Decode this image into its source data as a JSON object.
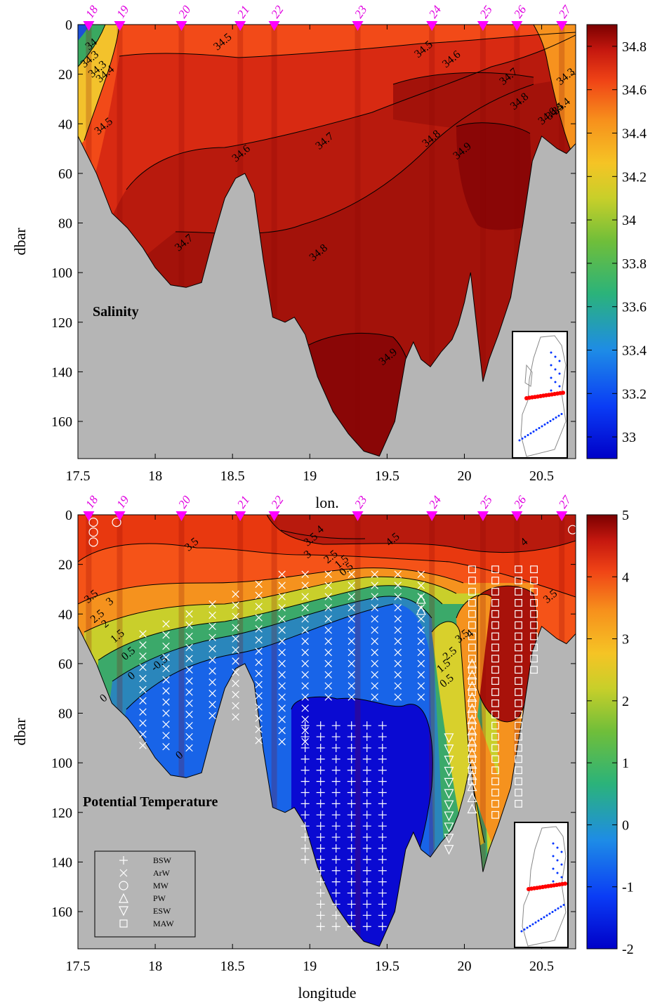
{
  "chart_data": [
    {
      "type": "heatmap",
      "title": "Salinity",
      "xlabel": "lon.",
      "ylabel": "dbar",
      "xlim": [
        17.5,
        20.72
      ],
      "ylim": [
        0,
        175
      ],
      "y_reversed": true,
      "xticks": [
        "17.5",
        "18",
        "18.5",
        "19",
        "19.5",
        "20",
        "20.5"
      ],
      "yticks": [
        "0",
        "20",
        "40",
        "60",
        "80",
        "100",
        "120",
        "140",
        "160"
      ],
      "stations": [
        {
          "id": "18",
          "lon": 17.57
        },
        {
          "id": "19",
          "lon": 17.77
        },
        {
          "id": "20",
          "lon": 18.17
        },
        {
          "id": "21",
          "lon": 18.55
        },
        {
          "id": "22",
          "lon": 18.77
        },
        {
          "id": "23",
          "lon": 19.31
        },
        {
          "id": "24",
          "lon": 19.79
        },
        {
          "id": "25",
          "lon": 20.12
        },
        {
          "id": "26",
          "lon": 20.34
        },
        {
          "id": "27",
          "lon": 20.63
        }
      ],
      "colorbar": {
        "range": [
          32.9,
          34.9
        ],
        "ticks": [
          "33",
          "33.2",
          "33.4",
          "33.6",
          "33.8",
          "34",
          "34.2",
          "34.4",
          "34.6",
          "34.8"
        ]
      },
      "contour_labels": [
        {
          "text": "34.5",
          "lon": 18.45,
          "dbar": 8
        },
        {
          "text": "34.5",
          "lon": 19.75,
          "dbar": 11
        },
        {
          "text": "34.6",
          "lon": 19.93,
          "dbar": 15
        },
        {
          "text": "34.5",
          "lon": 17.68,
          "dbar": 42
        },
        {
          "text": "34.6",
          "lon": 18.57,
          "dbar": 53
        },
        {
          "text": "34.7",
          "lon": 19.11,
          "dbar": 48
        },
        {
          "text": "34.8",
          "lon": 19.8,
          "dbar": 47
        },
        {
          "text": "34.9",
          "lon": 20.0,
          "dbar": 52
        },
        {
          "text": "34.7",
          "lon": 18.2,
          "dbar": 89
        },
        {
          "text": "34.8",
          "lon": 19.07,
          "dbar": 93
        },
        {
          "text": "34.9",
          "lon": 19.52,
          "dbar": 135
        },
        {
          "text": "34.7",
          "lon": 20.3,
          "dbar": 22
        },
        {
          "text": "34.8",
          "lon": 20.37,
          "dbar": 32
        },
        {
          "text": "34.3",
          "lon": 17.59,
          "dbar": 15
        },
        {
          "text": "34.3",
          "lon": 17.64,
          "dbar": 19
        },
        {
          "text": "34.4",
          "lon": 17.69,
          "dbar": 21
        },
        {
          "text": "34",
          "lon": 17.6,
          "dbar": 9
        },
        {
          "text": "34.3",
          "lon": 20.67,
          "dbar": 22
        },
        {
          "text": "34.4",
          "lon": 20.64,
          "dbar": 34
        },
        {
          "text": "34.5",
          "lon": 20.6,
          "dbar": 36
        },
        {
          "text": "34.6",
          "lon": 20.55,
          "dbar": 38
        }
      ]
    },
    {
      "type": "heatmap",
      "title": "Potential Temperature",
      "xlabel": "longitude",
      "ylabel": "dbar",
      "xlim": [
        17.5,
        20.72
      ],
      "ylim": [
        0,
        175
      ],
      "y_reversed": true,
      "xticks": [
        "17.5",
        "18",
        "18.5",
        "19",
        "19.5",
        "20",
        "20.5"
      ],
      "yticks": [
        "0",
        "20",
        "40",
        "60",
        "80",
        "100",
        "120",
        "140",
        "160"
      ],
      "colorbar": {
        "range": [
          -2,
          5
        ],
        "ticks": [
          "-2",
          "-1",
          "0",
          "1",
          "2",
          "3",
          "4",
          "5"
        ]
      },
      "contour_labels": [
        {
          "text": "3.5",
          "lon": 18.25,
          "dbar": 13
        },
        {
          "text": "3.5",
          "lon": 19.02,
          "dbar": 11
        },
        {
          "text": "4",
          "lon": 19.08,
          "dbar": 7
        },
        {
          "text": "4.5",
          "lon": 19.55,
          "dbar": 11
        },
        {
          "text": "4",
          "lon": 20.4,
          "dbar": 12
        },
        {
          "text": "3",
          "lon": 19.0,
          "dbar": 17
        },
        {
          "text": "2.5",
          "lon": 19.15,
          "dbar": 18
        },
        {
          "text": "1.5",
          "lon": 19.22,
          "dbar": 20
        },
        {
          "text": "0.5",
          "lon": 19.25,
          "dbar": 23
        },
        {
          "text": "3.5",
          "lon": 17.6,
          "dbar": 34
        },
        {
          "text": "3",
          "lon": 17.72,
          "dbar": 36
        },
        {
          "text": "2.5",
          "lon": 17.64,
          "dbar": 42
        },
        {
          "text": "2",
          "lon": 17.69,
          "dbar": 45
        },
        {
          "text": "1.5",
          "lon": 17.77,
          "dbar": 50
        },
        {
          "text": "0.5",
          "lon": 17.84,
          "dbar": 57
        },
        {
          "text": "-0.5",
          "lon": 18.04,
          "dbar": 61
        },
        {
          "text": "0",
          "lon": 17.86,
          "dbar": 66
        },
        {
          "text": "0",
          "lon": 18.17,
          "dbar": 98
        },
        {
          "text": "3.5",
          "lon": 20.57,
          "dbar": 34
        },
        {
          "text": "3.5",
          "lon": 20.0,
          "dbar": 50
        },
        {
          "text": "4",
          "lon": 20.05,
          "dbar": 49
        },
        {
          "text": "2.5",
          "lon": 19.92,
          "dbar": 57
        },
        {
          "text": "1.5",
          "lon": 19.88,
          "dbar": 62
        },
        {
          "text": "0.5",
          "lon": 19.9,
          "dbar": 68
        },
        {
          "text": "0",
          "lon": 17.68,
          "dbar": 75
        }
      ],
      "legend": {
        "placement": "bottom-left",
        "entries": [
          {
            "label": "BSW",
            "marker": "plus"
          },
          {
            "label": "ArW",
            "marker": "x"
          },
          {
            "label": "MW",
            "marker": "circle"
          },
          {
            "label": "PW",
            "marker": "triangle-up"
          },
          {
            "label": "ESW",
            "marker": "triangle-down"
          },
          {
            "label": "MAW",
            "marker": "square"
          }
        ]
      }
    }
  ],
  "colors": {
    "land": "#b5b5b5",
    "station_marker": "#ff00ff",
    "station_text": "#e000e0",
    "inset_section": "#ff0000",
    "inset_other_stations": "#0033ff"
  }
}
